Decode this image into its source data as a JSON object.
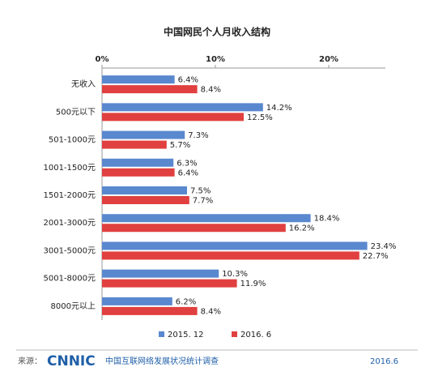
{
  "chart_data": {
    "type": "hbar",
    "title": "中国网民个人月收入结构",
    "categories": [
      "无收入",
      "500元以下",
      "501-1000元",
      "1001-1500元",
      "1501-2000元",
      "2001-3000元",
      "3001-5000元",
      "5001-8000元",
      "8000元以上"
    ],
    "series": [
      {
        "name": "2015. 12",
        "color": "#5a88cf",
        "values": [
          6.4,
          14.2,
          7.3,
          6.3,
          7.5,
          18.4,
          23.4,
          10.3,
          6.2
        ],
        "value_labels": [
          "6.4%",
          "14.2%",
          "7.3%",
          "6.3%",
          "7.5%",
          "18.4%",
          "23.4%",
          "10.3%",
          "6.2%"
        ]
      },
      {
        "name": "2016. 6",
        "color": "#e0403f",
        "values": [
          8.4,
          12.5,
          5.7,
          6.4,
          7.7,
          16.2,
          22.7,
          11.9,
          8.4
        ],
        "value_labels": [
          "8.4%",
          "12.5%",
          "5.7%",
          "6.4%",
          "7.7%",
          "16.2%",
          "22.7%",
          "11.9%",
          "8.4%"
        ]
      }
    ],
    "xlim": [
      0,
      25
    ],
    "xticks": [
      {
        "value": 0,
        "label": "0%"
      },
      {
        "value": 10,
        "label": "10%"
      },
      {
        "value": 20,
        "label": "20%"
      }
    ],
    "grid": false,
    "legend": "bottom"
  },
  "footer": {
    "source_label": "来源：",
    "logo": "CNNIC",
    "source": "中国互联网络发展状况统计调查",
    "date": "2016.6"
  }
}
